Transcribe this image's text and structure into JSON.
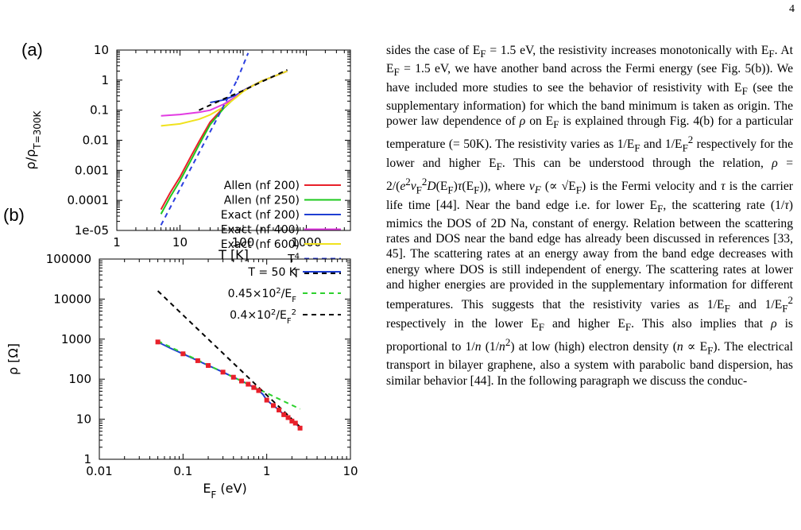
{
  "page_number": "4",
  "figure": {
    "panel_a_label": "(a)",
    "panel_b_label": "(b)"
  },
  "chart_data": [
    {
      "type": "line",
      "panel": "(a)",
      "xlabel": "T [K]",
      "ylabel": "ρ/ρT=300K",
      "x_scale": "log",
      "y_scale": "log",
      "xlim": [
        1,
        5000
      ],
      "ylim": [
        1e-05,
        10
      ],
      "x_ticks": [
        "1",
        "10",
        "100",
        "1000"
      ],
      "y_ticks": [
        "1e-05",
        "0.0001",
        "0.001",
        "0.01",
        "0.1",
        "1",
        "10"
      ],
      "legend_position": "bottom-right",
      "series": [
        {
          "name": "Allen (nf 200)",
          "color": "#e8202a",
          "dash": "solid",
          "x": [
            5,
            7,
            10,
            15,
            20,
            30,
            50,
            80,
            100,
            150,
            200,
            300,
            500
          ],
          "y": [
            5e-05,
            0.00018,
            0.0006,
            0.003,
            0.009,
            0.04,
            0.13,
            0.32,
            0.45,
            0.7,
            0.95,
            1.3,
            2.0
          ]
        },
        {
          "name": "Allen (nf 250)",
          "color": "#1ec81e",
          "dash": "solid",
          "x": [
            5,
            7,
            10,
            15,
            20,
            30,
            50,
            80,
            100,
            150,
            200,
            300,
            500
          ],
          "y": [
            3.5e-05,
            0.00013,
            0.00045,
            0.0022,
            0.007,
            0.033,
            0.12,
            0.3,
            0.44,
            0.7,
            0.95,
            1.3,
            2.0
          ]
        },
        {
          "name": "Exact (nf 200)",
          "color": "#1f3fd2",
          "dash": "solid",
          "x": [
            30,
            50,
            80,
            100,
            150,
            200,
            300,
            500
          ],
          "y": [
            0.18,
            0.22,
            0.33,
            0.45,
            0.7,
            0.95,
            1.3,
            2.0
          ]
        },
        {
          "name": "Exact (nf 400)",
          "color": "#e23ce2",
          "dash": "solid",
          "x": [
            5,
            10,
            20,
            30,
            50,
            80,
            100,
            150,
            200,
            300,
            500
          ],
          "y": [
            0.065,
            0.072,
            0.085,
            0.1,
            0.16,
            0.3,
            0.43,
            0.7,
            0.95,
            1.3,
            2.0
          ]
        },
        {
          "name": "Exact (nf 600)",
          "color": "#f0e21e",
          "dash": "solid",
          "x": [
            5,
            10,
            20,
            30,
            50,
            80,
            100,
            150,
            200,
            300,
            500
          ],
          "y": [
            0.03,
            0.035,
            0.05,
            0.07,
            0.13,
            0.28,
            0.42,
            0.7,
            0.95,
            1.3,
            2.0
          ]
        },
        {
          "name": "T4",
          "color": "#2b3fe0",
          "dash": "dashed",
          "x": [
            5,
            10,
            20,
            40,
            60,
            80
          ],
          "y": [
            1.5e-05,
            0.00024,
            0.0038,
            0.06,
            0.31,
            1.0
          ]
        },
        {
          "name": "T",
          "color": "#000000",
          "dash": "dashed",
          "x": [
            20,
            50,
            100,
            200,
            500
          ],
          "y": [
            0.1,
            0.24,
            0.45,
            0.9,
            2.2
          ]
        }
      ],
      "t4_extension": {
        "x": [
          80,
          120
        ],
        "y": [
          1.0,
          8.0
        ]
      }
    },
    {
      "type": "line",
      "panel": "(b)",
      "xlabel": "EF (eV)",
      "ylabel": "ρ [Ω]",
      "x_scale": "log",
      "y_scale": "log",
      "xlim": [
        0.01,
        10
      ],
      "ylim": [
        1,
        100000
      ],
      "x_ticks": [
        "0.01",
        "0.1",
        "1",
        "10"
      ],
      "y_ticks": [
        "1",
        "10",
        "100",
        "1000",
        "10000",
        "100000"
      ],
      "legend_position": "top-right",
      "series": [
        {
          "name": "T = 50 K",
          "color": "#1f3fd2",
          "dash": "solid",
          "x": [
            0.05,
            0.07,
            0.1,
            0.15,
            0.2,
            0.3,
            0.4,
            0.5,
            0.6,
            0.7,
            0.8,
            0.9,
            1.0,
            1.2,
            1.4,
            1.6,
            1.8,
            2.0,
            2.2,
            2.5
          ],
          "y": [
            850,
            600,
            430,
            290,
            220,
            150,
            112,
            90,
            75,
            62,
            52,
            42,
            30,
            22,
            17,
            13,
            11,
            9,
            8,
            6
          ]
        },
        {
          "name": "0.45×10²/EF",
          "color": "#2ed12e",
          "dash": "dashed",
          "x": [
            0.05,
            0.1,
            0.2,
            0.5,
            1,
            1.5,
            2.5
          ],
          "y": [
            900,
            450,
            225,
            90,
            45,
            30,
            18
          ]
        },
        {
          "name": "0.4×10²/EF²",
          "color": "#000000",
          "dash": "dashed",
          "x": [
            0.05,
            0.1,
            0.2,
            0.5,
            1.0,
            1.5,
            2.5
          ],
          "y": [
            16000,
            4000,
            1000,
            160,
            40,
            18,
            6.4
          ]
        }
      ],
      "markers": {
        "color": "#e8202a",
        "x": [
          0.05,
          0.1,
          0.15,
          0.2,
          0.3,
          0.4,
          0.5,
          0.6,
          0.7,
          0.8,
          1.0,
          1.2,
          1.4,
          1.6,
          1.8,
          2.0,
          2.2,
          2.5
        ],
        "y": [
          850,
          430,
          290,
          220,
          150,
          112,
          90,
          75,
          62,
          52,
          30,
          22,
          17,
          13,
          11,
          9,
          8,
          6
        ]
      }
    }
  ],
  "body_html": "sides the case of E<sub>F</sub> = 1.5 eV, the resistivity increases monotonically with E<sub>F</sub>. At E<sub>F</sub> = 1.5 eV, we have another band across the Fermi energy (see Fig. 5(b)). We have included more studies to see the behavior of resistivity with E<sub>F</sub> (see the supplementary information) for which the band minimum is taken as origin. The power law dependence of <i>ρ</i> on E<sub>F</sub> is explained through Fig. 4(b) for a particular temperature (= 50K). The resistivity varies as 1/E<sub>F</sub> and 1/E<sub>F</sub><sup>2</sup> respectively for the lower and higher E<sub>F</sub>. This can be understood through the relation, <i>ρ</i> = 2/(<i>e</i><sup>2</sup><i>v</i><sub>F</sub><sup>2</sup><i>D</i>(E<sub>F</sub>)<i>τ</i>(E<sub>F</sub>)), where <i>v<sub>F</sub></i> (∝ √E<sub>F</sub>) is the Fermi velocity and <i>τ</i> is the carrier life time [44]. Near the band edge i.e. for lower E<sub>F</sub>, the scattering rate (1/<i>τ</i>) mimics the DOS of 2D Na, constant of energy. Relation between the scattering rates and DOS near the band edge has already been discussed in references [33, 45]. The scattering rates at an energy away from the band edge decreases with energy where DOS is still independent of energy. The scattering rates at lower and higher energies are provided in the supplementary information for different temperatures. This suggests that the resistivity varies as 1/E<sub>F</sub> and 1/E<sub>F</sub><sup>2</sup> respectively in the lower E<sub>F</sub> and higher E<sub>F</sub>. This also implies that <i>ρ</i> is proportional to 1/<i>n</i> (1/<i>n</i><sup>2</sup>) at low (high) electron density (<i>n</i> ∝ E<sub>F</sub>). The electrical transport in bilayer graphene, also a system with parabolic band dispersion, has similar behavior [44]. In the following paragraph we discuss the conduc-"
}
